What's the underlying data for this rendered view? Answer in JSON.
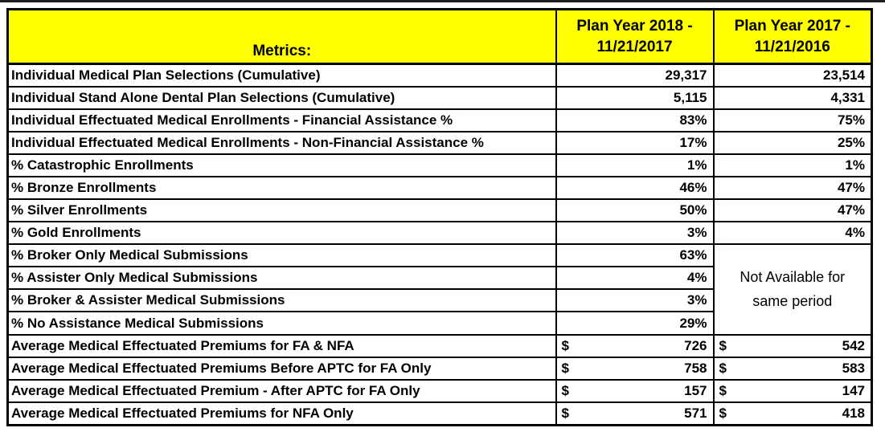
{
  "page": {
    "background_color": "#ffffff",
    "top_strip_color": "#1e1e1e"
  },
  "colors": {
    "header_background": "#ffff00",
    "border": "#000000",
    "text": "#000000"
  },
  "table": {
    "header": {
      "metrics_label": "Metrics:",
      "columns": [
        {
          "line1": "Plan Year 2018 -",
          "line2": "11/21/2017"
        },
        {
          "line1": "Plan Year 2017 -",
          "line2": "11/21/2016"
        }
      ]
    },
    "currency_symbol": "$",
    "merged_cell": {
      "text": "Not Available for same period",
      "start_index": 8,
      "row_span": 4
    },
    "rows": [
      {
        "label": "Individual Medical Plan Selections (Cumulative)",
        "y2018": "29,317",
        "y2017": "23,514",
        "format": "plain"
      },
      {
        "label": "Individual Stand Alone Dental Plan Selections (Cumulative)",
        "y2018": "5,115",
        "y2017": "4,331",
        "format": "plain"
      },
      {
        "label": "Individual Effectuated Medical Enrollments - Financial Assistance %",
        "y2018": "83%",
        "y2017": "75%",
        "format": "plain"
      },
      {
        "label": "Individual Effectuated Medical Enrollments - Non-Financial Assistance %",
        "y2018": "17%",
        "y2017": "25%",
        "format": "plain"
      },
      {
        "label": "% Catastrophic Enrollments",
        "y2018": "1%",
        "y2017": "1%",
        "format": "plain"
      },
      {
        "label": "% Bronze Enrollments",
        "y2018": "46%",
        "y2017": "47%",
        "format": "plain"
      },
      {
        "label": "% Silver Enrollments",
        "y2018": "50%",
        "y2017": "47%",
        "format": "plain"
      },
      {
        "label": "% Gold Enrollments",
        "y2018": "3%",
        "y2017": "4%",
        "format": "plain"
      },
      {
        "label": "% Broker Only Medical Submissions",
        "y2018": "63%",
        "y2017": null,
        "format": "plain"
      },
      {
        "label": "% Assister Only Medical Submissions",
        "y2018": "4%",
        "y2017": null,
        "format": "plain"
      },
      {
        "label": "% Broker & Assister Medical Submissions",
        "y2018": "3%",
        "y2017": null,
        "format": "plain"
      },
      {
        "label": "% No Assistance Medical Submissions",
        "y2018": "29%",
        "y2017": null,
        "format": "plain"
      },
      {
        "label": "Average Medical Effectuated Premiums for FA & NFA",
        "y2018": "726",
        "y2017": "542",
        "format": "currency"
      },
      {
        "label": "Average Medical Effectuated Premiums Before APTC for FA Only",
        "y2018": "758",
        "y2017": "583",
        "format": "currency"
      },
      {
        "label": "Average Medical Effectuated Premium - After APTC for FA Only",
        "y2018": "157",
        "y2017": "147",
        "format": "currency"
      },
      {
        "label": "Average Medical Effectuated Premiums for NFA Only",
        "y2018": "571",
        "y2017": "418",
        "format": "currency"
      }
    ]
  }
}
